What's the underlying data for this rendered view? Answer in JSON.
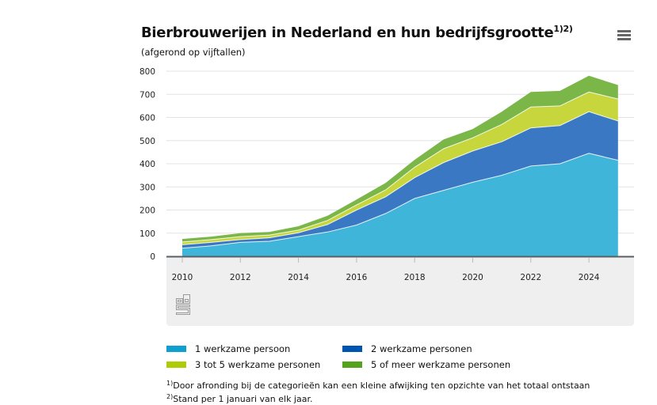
{
  "header": {
    "title": "Bierbrouwerijen in Nederland en hun bedrijfsgrootte",
    "title_footnote_refs": "1)2)",
    "subtitle": "(afgerond op vijftallen)",
    "menu_icon": "hamburger-menu-icon"
  },
  "chart_data": {
    "type": "area",
    "stacked": true,
    "title": "Bierbrouwerijen in Nederland en hun bedrijfsgrootte",
    "subtitle": "(afgerond op vijftallen)",
    "xlabel": "",
    "ylabel": "",
    "x": [
      2010,
      2011,
      2012,
      2013,
      2014,
      2015,
      2016,
      2017,
      2018,
      2019,
      2020,
      2021,
      2022,
      2023,
      2024,
      2025
    ],
    "xticks": [
      "2010",
      "2012",
      "2014",
      "2016",
      "2018",
      "2020",
      "2022",
      "2024"
    ],
    "yticks": [
      "0",
      "100",
      "200",
      "300",
      "400",
      "500",
      "600",
      "700",
      "800"
    ],
    "ylim": [
      0,
      800
    ],
    "grid": true,
    "legend_position": "bottom",
    "series": [
      {
        "name": "1 werkzame persoon",
        "color": "#3fb6d9",
        "legend_color": "#0fa0cf",
        "values": [
          35,
          45,
          60,
          65,
          85,
          105,
          135,
          185,
          250,
          285,
          320,
          350,
          390,
          400,
          445,
          415
        ]
      },
      {
        "name": "2 werkzame personen",
        "color": "#3a78c4",
        "legend_color": "#0055b3",
        "values": [
          15,
          15,
          12,
          15,
          17,
          32,
          65,
          72,
          90,
          120,
          135,
          145,
          165,
          165,
          180,
          170
        ]
      },
      {
        "name": "3 tot 5 werkzame personen",
        "color": "#c8d63d",
        "legend_color": "#afcb05",
        "values": [
          12,
          12,
          13,
          12,
          11,
          18,
          22,
          30,
          45,
          60,
          57,
          75,
          90,
          85,
          85,
          95
        ]
      },
      {
        "name": "5 of meer werkzame personen",
        "color": "#7ab648",
        "legend_color": "#53a31d",
        "values": [
          13,
          13,
          15,
          13,
          17,
          20,
          23,
          30,
          32,
          40,
          38,
          55,
          65,
          65,
          70,
          60
        ]
      }
    ]
  },
  "legend": {
    "items": [
      {
        "label": "1 werkzame persoon",
        "color": "#0fa0cf"
      },
      {
        "label": "2 werkzame personen",
        "color": "#0055b3"
      },
      {
        "label": "3 tot 5 werkzame personen",
        "color": "#afcb05"
      },
      {
        "label": "5 of meer werkzame personen",
        "color": "#53a31d"
      }
    ]
  },
  "footnotes": [
    {
      "ref": "1)",
      "text": "Door afronding bij de categorieën kan een kleine afwijking ten opzichte van het totaal ontstaan"
    },
    {
      "ref": "2)",
      "text": "Stand per 1 januari van elk jaar."
    }
  ],
  "logo": "cbs-logo"
}
